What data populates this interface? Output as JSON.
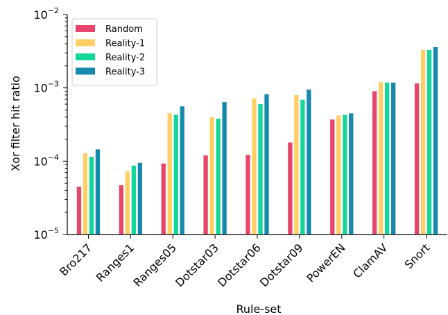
{
  "chart_data": {
    "type": "bar",
    "title": "",
    "xlabel": "Rule-set",
    "ylabel": "Xor filter hit ratio",
    "yscale": "log",
    "ylim": [
      1e-05,
      0.01
    ],
    "ytick_labels": [
      {
        "base": "10",
        "exp": "−5",
        "value": 1e-05
      },
      {
        "base": "10",
        "exp": "−4",
        "value": 0.0001
      },
      {
        "base": "10",
        "exp": "−3",
        "value": 0.001
      },
      {
        "base": "10",
        "exp": "−2",
        "value": 0.01
      }
    ],
    "legend_position": "top-left",
    "categories": [
      "Bro217",
      "Ranges1",
      "Ranges05",
      "Dotstar03",
      "Dotstar06",
      "Dotstar09",
      "PowerEN",
      "ClamAV",
      "Snort"
    ],
    "series": [
      {
        "name": "Random",
        "color": "#e8456b",
        "values": [
          4.5e-05,
          4.7e-05,
          9.3e-05,
          0.00012,
          0.000122,
          0.00018,
          0.00037,
          0.0009,
          0.00115
        ]
      },
      {
        "name": "Reality-1",
        "color": "#ffcf66",
        "values": [
          0.000128,
          7.3e-05,
          0.00045,
          0.0004,
          0.00072,
          0.0008,
          0.00042,
          0.0012,
          0.0033
        ]
      },
      {
        "name": "Reality-2",
        "color": "#12d69a",
        "values": [
          0.000115,
          8.7e-05,
          0.00043,
          0.00038,
          0.0006,
          0.00069,
          0.00043,
          0.00118,
          0.0033
        ]
      },
      {
        "name": "Reality-3",
        "color": "#168aad",
        "values": [
          0.000145,
          9.5e-05,
          0.00056,
          0.00064,
          0.00082,
          0.00095,
          0.00045,
          0.00118,
          0.0036
        ]
      }
    ]
  }
}
